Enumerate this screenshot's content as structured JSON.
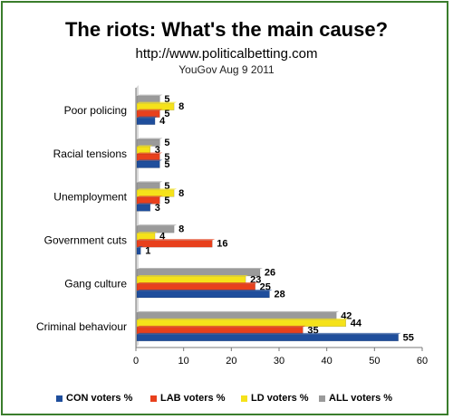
{
  "header": {
    "title": "The riots: What's the main cause?",
    "subtitle": "http://www.politicalbetting.com",
    "source": "YouGov Aug 9 2011"
  },
  "chart_data": {
    "type": "bar",
    "orientation": "horizontal",
    "categories": [
      "Poor policing",
      "Racial tensions",
      "Unemployment",
      "Government cuts",
      "Gang culture",
      "Criminal behaviour"
    ],
    "series": [
      {
        "name": "CON voters %",
        "color": "#1f4e9c",
        "values": [
          4,
          5,
          3,
          1,
          28,
          55
        ]
      },
      {
        "name": "LAB  voters %",
        "color": "#e8401c",
        "values": [
          5,
          5,
          5,
          16,
          25,
          35
        ]
      },
      {
        "name": "LD  voters %",
        "color": "#f5e21a",
        "values": [
          8,
          3,
          8,
          4,
          23,
          44
        ]
      },
      {
        "name": "ALL   voters %",
        "color": "#9a9a9a",
        "values": [
          5,
          5,
          5,
          8,
          26,
          42
        ]
      }
    ],
    "xlim": [
      0,
      60
    ],
    "xticks": [
      0,
      10,
      20,
      30,
      40,
      50,
      60
    ],
    "grid": false,
    "legend_position": "bottom"
  }
}
